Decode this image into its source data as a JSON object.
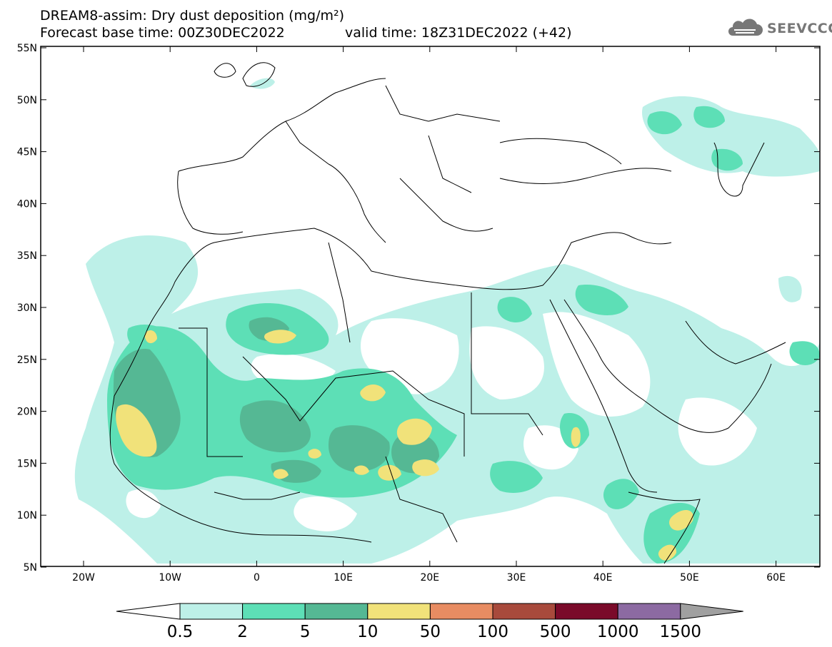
{
  "header": {
    "title_line1": "DREAM8-assim: Dry dust deposition (mg/m²)",
    "title_line2": "Forecast base time: 00Z30DEC2022",
    "valid_time": "valid time: 18Z31DEC2022 (+42)",
    "logo_text": "SEEVCCC"
  },
  "map": {
    "lat_labels": [
      "55N",
      "50N",
      "45N",
      "40N",
      "35N",
      "30N",
      "25N",
      "20N",
      "15N",
      "10N",
      "5N"
    ],
    "lon_labels": [
      "20W",
      "10W",
      "0",
      "10E",
      "20E",
      "30E",
      "40E",
      "50E",
      "60E"
    ]
  },
  "colorbar": {
    "levels": [
      "0.5",
      "2",
      "5",
      "10",
      "50",
      "100",
      "500",
      "1000",
      "1500"
    ],
    "colors": [
      "#bdf0e8",
      "#5ddfb6",
      "#55b894",
      "#f1e27a",
      "#e88c62",
      "#a84a3c",
      "#7a0a2a",
      "#8c6aa2",
      "#a0a0a0"
    ]
  }
}
